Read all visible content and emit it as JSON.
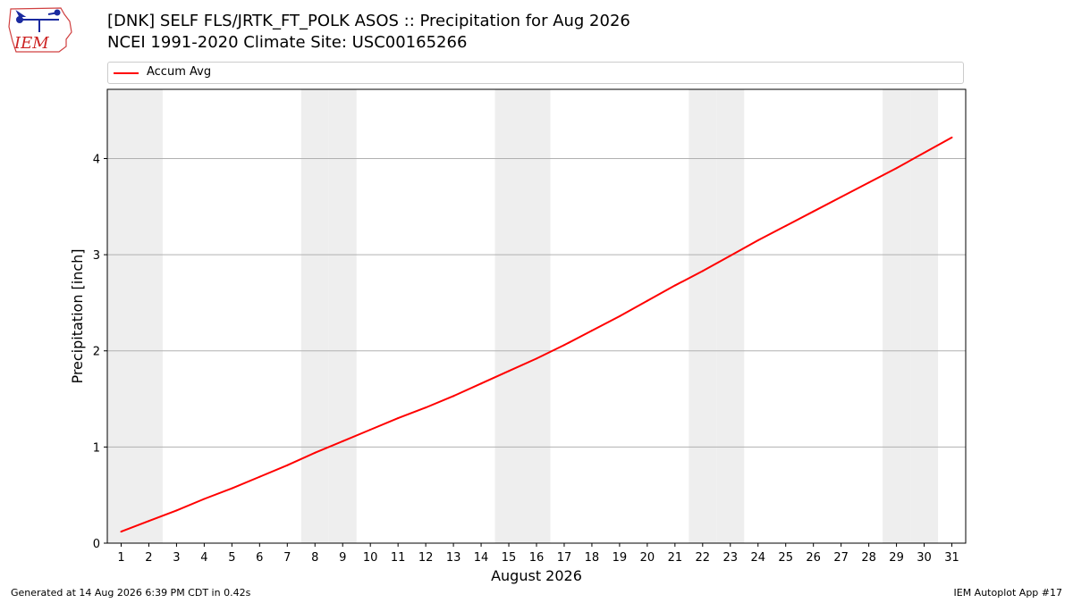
{
  "header": {
    "logo_text": "IEM",
    "title_line1": "[DNK] SELF FLS/JRTK_FT_POLK ASOS :: Precipitation for Aug 2026",
    "title_line2": "NCEI 1991-2020 Climate Site: USC00165266"
  },
  "legend": {
    "label": "Accum Avg",
    "color": "#ff0000"
  },
  "footer": {
    "generated": "Generated at 14 Aug 2026 6:39 PM CDT in 0.42s",
    "app": "IEM Autoplot App #17"
  },
  "colors": {
    "line": "#ff0000",
    "weekend_band": "#eeeeee",
    "grid": "#b0b0b0"
  },
  "chart_data": {
    "type": "line",
    "title": "[DNK] SELF FLS/JRTK_FT_POLK ASOS :: Precipitation for Aug 2026",
    "subtitle": "NCEI 1991-2020 Climate Site: USC00165266",
    "xlabel": "August 2026",
    "ylabel": "Precipitation [inch]",
    "xlim": [
      0.5,
      31.5
    ],
    "ylim": [
      0,
      4.72
    ],
    "grid": "horizontal",
    "legend_position": "top",
    "x": [
      1,
      2,
      3,
      4,
      5,
      6,
      7,
      8,
      9,
      10,
      11,
      12,
      13,
      14,
      15,
      16,
      17,
      18,
      19,
      20,
      21,
      22,
      23,
      24,
      25,
      26,
      27,
      28,
      29,
      30,
      31
    ],
    "x_tick_labels": [
      "1",
      "2",
      "3",
      "4",
      "5",
      "6",
      "7",
      "8",
      "9",
      "10",
      "11",
      "12",
      "13",
      "14",
      "15",
      "16",
      "17",
      "18",
      "19",
      "20",
      "21",
      "22",
      "23",
      "24",
      "25",
      "26",
      "27",
      "28",
      "29",
      "30",
      "31"
    ],
    "y_ticks": [
      0,
      1,
      2,
      3,
      4
    ],
    "weekend_days": [
      1,
      2,
      8,
      9,
      15,
      16,
      22,
      23,
      29,
      30
    ],
    "series": [
      {
        "name": "Accum Avg",
        "color": "#ff0000",
        "values": [
          0.12,
          0.23,
          0.34,
          0.46,
          0.57,
          0.69,
          0.81,
          0.94,
          1.06,
          1.18,
          1.3,
          1.41,
          1.53,
          1.66,
          1.79,
          1.92,
          2.06,
          2.21,
          2.36,
          2.52,
          2.68,
          2.83,
          2.99,
          3.15,
          3.3,
          3.45,
          3.6,
          3.75,
          3.9,
          4.06,
          4.22
        ]
      }
    ]
  }
}
